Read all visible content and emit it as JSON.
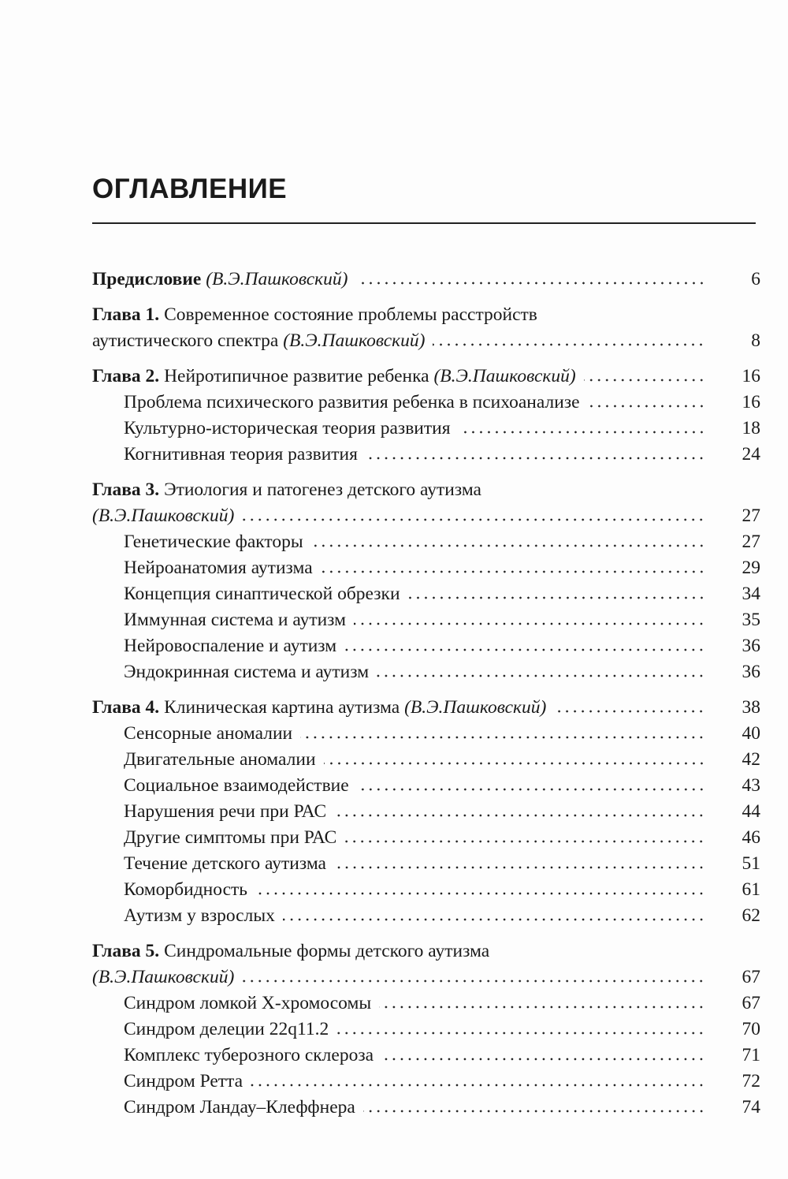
{
  "title": "ОГЛАВЛЕНИЕ",
  "entries": [
    {
      "kind": "chapter",
      "label": "Предисловие",
      "lines": [
        {
          "text": "",
          "author": "(В.Э.Пашковский)",
          "page": "6"
        }
      ]
    },
    {
      "kind": "chapter",
      "label": "Глава 1.",
      "lines": [
        {
          "text": "Современное состояние проблемы расстройств"
        },
        {
          "text": "аутистического спектра",
          "author": "(В.Э.Пашковский)",
          "page": "8"
        }
      ]
    },
    {
      "kind": "chapter",
      "label": "Глава 2.",
      "lines": [
        {
          "text": "Нейротипичное развитие ребенка",
          "author": "(В.Э.Пашковский)",
          "page": "16"
        }
      ],
      "subs": [
        {
          "text": "Проблема психического развития ребенка в психоанализе",
          "page": "16"
        },
        {
          "text": "Культурно-историческая теория развития",
          "page": "18"
        },
        {
          "text": "Когнитивная теория развития",
          "page": "24"
        }
      ]
    },
    {
      "kind": "chapter",
      "label": "Глава 3.",
      "lines": [
        {
          "text": "Этиология и патогенез детского аутизма"
        },
        {
          "text": "",
          "author": "(В.Э.Пашковский)",
          "page": "27"
        }
      ],
      "subs": [
        {
          "text": "Генетические факторы",
          "page": "27"
        },
        {
          "text": "Нейроанатомия аутизма",
          "page": "29"
        },
        {
          "text": "Концепция синаптической обрезки",
          "page": "34"
        },
        {
          "text": "Иммунная система и аутизм",
          "page": "35"
        },
        {
          "text": "Нейровоспаление и аутизм",
          "page": "36"
        },
        {
          "text": "Эндокринная система и аутизм",
          "page": "36"
        }
      ]
    },
    {
      "kind": "chapter",
      "label": "Глава 4.",
      "lines": [
        {
          "text": "Клиническая картина аутизма",
          "author": "(В.Э.Пашковский)",
          "page": "38"
        }
      ],
      "subs": [
        {
          "text": "Сенсорные аномалии",
          "page": "40"
        },
        {
          "text": "Двигательные аномалии",
          "page": "42"
        },
        {
          "text": "Социальное взаимодействие",
          "page": "43"
        },
        {
          "text": "Нарушения речи при РАС",
          "page": "44"
        },
        {
          "text": "Другие симптомы при РАС",
          "page": "46"
        },
        {
          "text": "Течение детского аутизма",
          "page": "51"
        },
        {
          "text": "Коморбидность",
          "page": "61"
        },
        {
          "text": "Аутизм у взрослых",
          "page": "62"
        }
      ]
    },
    {
      "kind": "chapter",
      "label": "Глава 5.",
      "lines": [
        {
          "text": "Синдромальные формы детского аутизма"
        },
        {
          "text": "",
          "author": "(В.Э.Пашковский)",
          "page": "67"
        }
      ],
      "subs": [
        {
          "text": "Синдром ломкой Х-хромосомы",
          "page": "67"
        },
        {
          "text": "Синдром делеции 22q11.2",
          "page": "70"
        },
        {
          "text": "Комплекс туберозного склероза",
          "page": "71"
        },
        {
          "text": "Синдром Ретта",
          "page": "72"
        },
        {
          "text": "Синдром Ландау–Клеффнера",
          "page": "74"
        }
      ]
    }
  ]
}
